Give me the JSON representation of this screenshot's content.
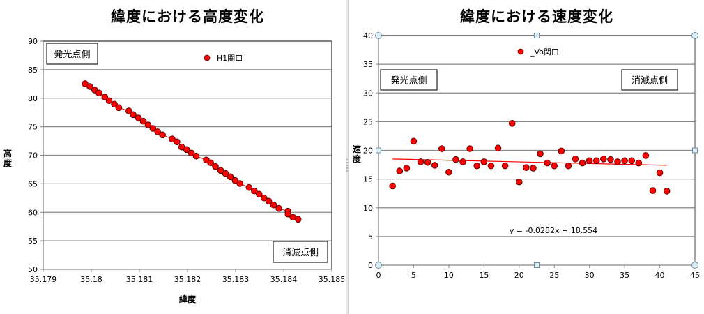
{
  "chart_data": [
    {
      "type": "scatter",
      "title": "緯度における高度変化",
      "xlabel": "緯度",
      "ylabel": "高度",
      "xlim": [
        35.179,
        35.185
      ],
      "ylim": [
        50,
        90
      ],
      "xticks": [
        "35.179",
        "35.18",
        "35.181",
        "35.182",
        "35.183",
        "35.184",
        "35.185"
      ],
      "yticks": [
        "50",
        "55",
        "60",
        "65",
        "70",
        "75",
        "80",
        "85",
        "90"
      ],
      "grid": "horizontal",
      "legend": {
        "position": "top-center",
        "entries": [
          "H1関口"
        ]
      },
      "annotations": [
        "発光点側",
        "消滅点側"
      ],
      "series": [
        {
          "name": "H1関口",
          "marker": "circle",
          "color": "#ff0000",
          "connected": true,
          "x": [
            35.17987,
            35.17997,
            35.18007,
            35.18016,
            35.18028,
            35.18037,
            35.18048,
            35.18057,
            35.18078,
            35.18087,
            35.18098,
            35.18108,
            35.18118,
            35.18128,
            35.18138,
            35.18148,
            35.18168,
            35.18178,
            35.18188,
            35.18198,
            35.18208,
            35.18218,
            35.18239,
            35.18248,
            35.18258,
            35.18269,
            35.18279,
            35.18289,
            35.18299,
            35.18309,
            35.18328,
            35.18339,
            35.18349,
            35.18359,
            35.18369,
            35.18379,
            35.1839,
            35.18409,
            35.18409,
            35.18419,
            35.1843
          ],
          "y": [
            82.54,
            82.05,
            81.44,
            80.91,
            80.21,
            79.57,
            78.95,
            78.34,
            77.77,
            77.12,
            76.54,
            75.97,
            75.32,
            74.71,
            74.1,
            73.57,
            72.85,
            72.35,
            71.44,
            71.0,
            70.39,
            69.85,
            69.17,
            68.68,
            68.02,
            67.33,
            66.8,
            66.23,
            65.57,
            65.05,
            64.35,
            63.74,
            63.17,
            62.51,
            61.95,
            61.29,
            60.68,
            60.19,
            59.7,
            59.14,
            58.77
          ]
        }
      ]
    },
    {
      "type": "scatter",
      "title": "緯度における速度変化",
      "xlabel": "",
      "ylabel": "速度",
      "xlim": [
        0,
        45
      ],
      "ylim": [
        0,
        40
      ],
      "xticks": [
        "0",
        "5",
        "10",
        "15",
        "20",
        "25",
        "30",
        "35",
        "40",
        "45"
      ],
      "yticks": [
        "0",
        "5",
        "10",
        "15",
        "20",
        "25",
        "30",
        "35",
        "40"
      ],
      "grid": "horizontal",
      "legend": {
        "position": "top-center",
        "entries": [
          "_Vo関口"
        ]
      },
      "annotations": [
        "発光点側",
        "消滅点側",
        "y = -0.0282x + 18.554"
      ],
      "series": [
        {
          "name": "_Vo関口",
          "marker": "circle",
          "color": "#ff0000",
          "connected": false,
          "x": [
            2,
            3,
            4,
            5,
            6,
            7,
            8,
            9,
            10,
            11,
            12,
            13,
            14,
            15,
            16,
            17,
            18,
            19,
            20,
            21,
            22,
            23,
            24,
            25,
            26,
            27,
            28,
            29,
            30,
            31,
            32,
            33,
            34,
            35,
            36,
            37,
            38,
            39,
            40,
            41
          ],
          "y": [
            13.8,
            16.4,
            16.9,
            21.6,
            18.0,
            17.9,
            17.4,
            20.3,
            16.2,
            18.4,
            18.0,
            20.3,
            17.3,
            18.0,
            17.3,
            20.4,
            17.3,
            24.7,
            14.5,
            17.0,
            16.9,
            19.4,
            17.8,
            17.3,
            19.9,
            17.3,
            18.5,
            17.8,
            18.2,
            18.2,
            18.5,
            18.4,
            18.0,
            18.2,
            18.2,
            17.8,
            19.1,
            13.0,
            16.1,
            12.9
          ]
        }
      ],
      "trendline": {
        "type": "linear",
        "slope": -0.0282,
        "intercept": 18.554,
        "x_range": [
          2,
          41
        ],
        "color": "#ff0000",
        "equation": "y = -0.0282x + 18.554"
      }
    }
  ],
  "left_chart": {
    "title": "緯度における高度変化",
    "xlabel": "緯度",
    "ylabel": "高度",
    "legend_label": "H1関口",
    "box_start": "発光点側",
    "box_end": "消滅点側"
  },
  "right_chart": {
    "title": "緯度における速度変化",
    "ylabel": "速度",
    "legend_label": "_Vo関口",
    "box_start": "発光点側",
    "box_end": "消滅点側",
    "equation": "y = -0.0282x + 18.554"
  },
  "colors": {
    "marker_fill": "#ff0000",
    "marker_stroke": "#5a0000",
    "trendline": "#ff0000",
    "gridline": "#878787",
    "selection_handle": "#dbeef4",
    "selection_handle_stroke": "#6e8ea6"
  }
}
